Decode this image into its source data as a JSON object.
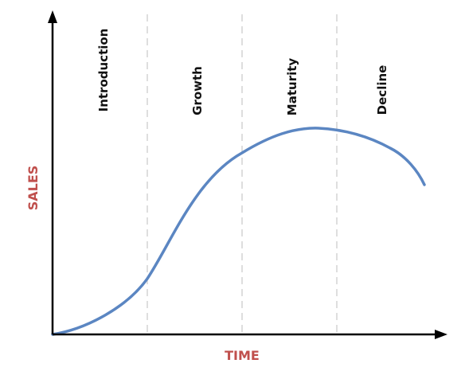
{
  "stages": [
    {
      "label": "Introduction"
    },
    {
      "label": "Growth"
    },
    {
      "label": "Maturity"
    },
    {
      "label": "Decline"
    }
  ],
  "axes": {
    "x_title": "TIME",
    "y_title": "SALES",
    "title_color": "#c0504d"
  },
  "curve_color": "#5b86c2"
}
